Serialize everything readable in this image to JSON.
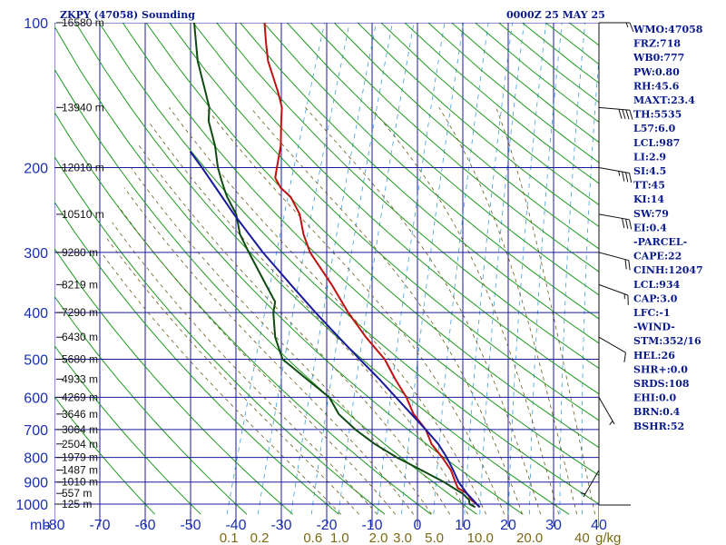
{
  "header": {
    "title": "ZKPY (47058) Sounding",
    "time": "0000Z 25 MAY 25"
  },
  "colors": {
    "isobar": "#1a1a9c",
    "isotherm": "#1a1a9c",
    "dry_adiabat": "#1f9a1f",
    "moist_adiabat": "#6b5a1a",
    "mixing_ratio": "#3fa0d8",
    "temperature": "#c01010",
    "dewpoint": "#0f4a12",
    "parcel": "#1a1a9c",
    "wind_barb": "#111111"
  },
  "chart_data": {
    "type": "line",
    "chart_kind": "skew-T log-P sounding",
    "y_scale": "log",
    "y_axis_unit": "mb",
    "x_axis_unit": "temperature (deg C)",
    "xlim": [
      -80,
      40
    ],
    "ylim": [
      1000,
      100
    ],
    "grid": true,
    "pressure_levels": [
      100,
      200,
      300,
      400,
      500,
      600,
      700,
      800,
      900,
      1000
    ],
    "pressure_labels": [
      "100",
      "200",
      "300",
      "400",
      "500",
      "600",
      "700",
      "800",
      "900",
      "1000"
    ],
    "temperature_ticks": [
      -80,
      -70,
      -60,
      -50,
      -40,
      -30,
      -20,
      -10,
      0,
      10,
      20,
      30,
      40
    ],
    "temperature_labels": [
      "-80",
      "-70",
      "-60",
      "-50",
      "-40",
      "-30",
      "-20",
      "-10",
      "0",
      "10",
      "20",
      "30",
      "40"
    ],
    "mixing_ratio_labels": [
      {
        "label": "0.1",
        "value": 0.1
      },
      {
        "label": "0.2",
        "value": 0.2
      },
      {
        "label": "0.6",
        "value": 0.6
      },
      {
        "label": "1.0",
        "value": 1.0
      },
      {
        "label": "2.0",
        "value": 2.0
      },
      {
        "label": "3.0",
        "value": 3.0
      },
      {
        "label": "5.0",
        "value": 5.0
      },
      {
        "label": "10.0",
        "value": 10.0
      },
      {
        "label": "20.0",
        "value": 20.0
      },
      {
        "label": "40",
        "value": 40.0
      }
    ],
    "mixing_ratio_unit": "g/kg",
    "height_labels": [
      {
        "label": "16580 m",
        "p": 100
      },
      {
        "label": "13940 m",
        "p": 150
      },
      {
        "label": "12010 m",
        "p": 200
      },
      {
        "label": "10510 m",
        "p": 250
      },
      {
        "label": "9280 m",
        "p": 300
      },
      {
        "label": "8219 m",
        "p": 350
      },
      {
        "label": "7290 m",
        "p": 400
      },
      {
        "label": "6430 m",
        "p": 450
      },
      {
        "label": "5680 m",
        "p": 500
      },
      {
        "label": "4933 m",
        "p": 550
      },
      {
        "label": "4269 m",
        "p": 600
      },
      {
        "label": "3646 m",
        "p": 650
      },
      {
        "label": "3064 m",
        "p": 700
      },
      {
        "label": "2504 m",
        "p": 750
      },
      {
        "label": "1979 m",
        "p": 800
      },
      {
        "label": "1487 m",
        "p": 850
      },
      {
        "label": "1010 m",
        "p": 900
      },
      {
        "label": "557 m",
        "p": 950
      },
      {
        "label": "125 m",
        "p": 1000
      }
    ],
    "series": [
      {
        "key": "temperature",
        "points": [
          [
            1015,
            14.0
          ],
          [
            1000,
            13.0
          ],
          [
            980,
            11.5
          ],
          [
            950,
            10.0
          ],
          [
            925,
            7.5
          ],
          [
            900,
            6.5
          ],
          [
            850,
            4.5
          ],
          [
            800,
            1.5
          ],
          [
            750,
            -2.0
          ],
          [
            700,
            -4.5
          ],
          [
            650,
            -8.5
          ],
          [
            600,
            -11.5
          ],
          [
            550,
            -15.5
          ],
          [
            500,
            -19.5
          ],
          [
            450,
            -25.5
          ],
          [
            400,
            -31.5
          ],
          [
            350,
            -37.5
          ],
          [
            300,
            -45.0
          ],
          [
            275,
            -48.0
          ],
          [
            250,
            -50.5
          ],
          [
            230,
            -54.0
          ],
          [
            220,
            -57.0
          ],
          [
            210,
            -59.0
          ],
          [
            200,
            -59.5
          ],
          [
            180,
            -60.5
          ],
          [
            160,
            -62.5
          ],
          [
            150,
            -63.5
          ],
          [
            140,
            -65.5
          ],
          [
            120,
            -70.5
          ],
          [
            110,
            -72.5
          ],
          [
            100,
            -74.5
          ]
        ]
      },
      {
        "key": "dewpoint",
        "points": [
          [
            1015,
            13.0
          ],
          [
            1000,
            11.5
          ],
          [
            980,
            11.0
          ],
          [
            950,
            9.0
          ],
          [
            925,
            6.5
          ],
          [
            900,
            4.0
          ],
          [
            850,
            -2.0
          ],
          [
            800,
            -8.5
          ],
          [
            750,
            -14.5
          ],
          [
            700,
            -20.0
          ],
          [
            650,
            -25.0
          ],
          [
            600,
            -28.5
          ],
          [
            550,
            -35.0
          ],
          [
            500,
            -42.0
          ],
          [
            450,
            -45.5
          ],
          [
            400,
            -48.0
          ],
          [
            380,
            -48.5
          ],
          [
            350,
            -52.0
          ],
          [
            300,
            -58.5
          ],
          [
            275,
            -62.0
          ],
          [
            250,
            -64.5
          ],
          [
            230,
            -68.0
          ],
          [
            220,
            -69.5
          ],
          [
            210,
            -71.0
          ],
          [
            200,
            -72.5
          ],
          [
            180,
            -75.0
          ],
          [
            160,
            -78.5
          ],
          [
            150,
            -79.5
          ],
          [
            140,
            -81.5
          ],
          [
            120,
            -86.0
          ],
          [
            100,
            -90.0
          ]
        ]
      },
      {
        "key": "parcel",
        "points": [
          [
            1015,
            14.0
          ],
          [
            950,
            10.0
          ],
          [
            900,
            7.2
          ],
          [
            850,
            5.0
          ],
          [
            800,
            2.5
          ],
          [
            750,
            -0.5
          ],
          [
            700,
            -4.5
          ],
          [
            650,
            -9.0
          ],
          [
            600,
            -13.8
          ],
          [
            550,
            -19.0
          ],
          [
            500,
            -25.0
          ],
          [
            450,
            -31.5
          ],
          [
            400,
            -38.7
          ],
          [
            350,
            -46.5
          ],
          [
            300,
            -55.4
          ],
          [
            250,
            -65.0
          ],
          [
            200,
            -76.0
          ],
          [
            185,
            -80.0
          ]
        ]
      }
    ],
    "wind_barbs": [
      {
        "p": 100,
        "dir": 270,
        "spd": 15
      },
      {
        "p": 150,
        "dir": 275,
        "spd": 40
      },
      {
        "p": 200,
        "dir": 280,
        "spd": 35
      },
      {
        "p": 250,
        "dir": 280,
        "spd": 30
      },
      {
        "p": 300,
        "dir": 285,
        "spd": 20
      },
      {
        "p": 350,
        "dir": 290,
        "spd": 15
      },
      {
        "p": 450,
        "dir": 300,
        "spd": 10
      },
      {
        "p": 600,
        "dir": 330,
        "spd": 5
      },
      {
        "p": 850,
        "dir": 30,
        "spd": 5
      }
    ]
  },
  "indices": [
    "WMO:47058",
    "FRZ:718",
    "WB0:777",
    "PW:0.80",
    "RH:45.6",
    "MAXT:23.4",
    "TH:5535",
    "L57:6.0",
    "LCL:987",
    "LI:2.9",
    "SI:4.5",
    "TT:45",
    "KI:14",
    "SW:79",
    "EI:0.4",
    "-PARCEL-",
    "CAPE:22",
    "CINH:12047",
    "LCL:934",
    "CAP:3.0",
    "LFC:-1",
    "-WIND-",
    "STM:352/16",
    "HEL:26",
    "SHR+:0.0",
    "SRDS:108",
    "EHI:0.0",
    "BRN:0.4",
    "BSHR:52"
  ],
  "labels": {
    "mb_unit": "mb",
    "gkg_unit": "g/kg"
  }
}
